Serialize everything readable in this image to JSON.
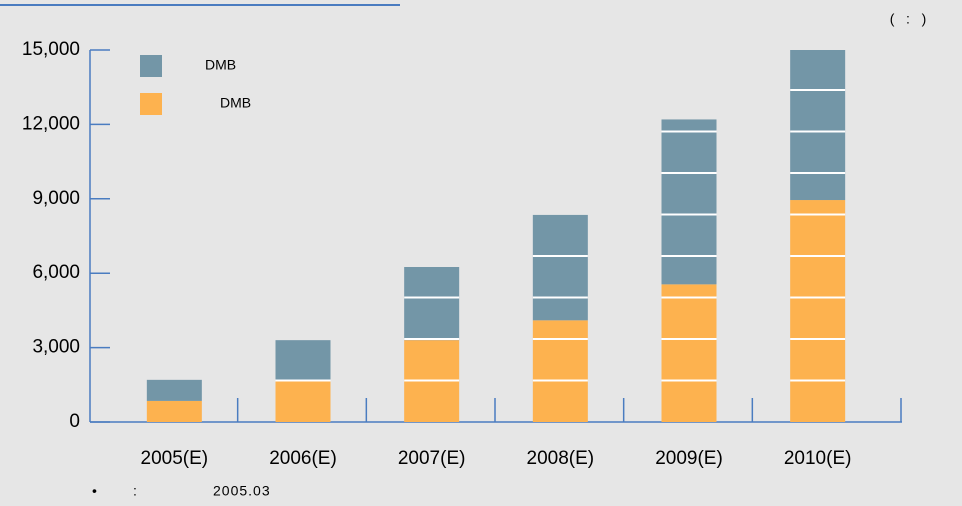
{
  "chart_data": {
    "type": "stacked_bar",
    "unit_label": "(   :   )",
    "note_bullet": "•",
    "note_label": ":",
    "note_text": "2005.03",
    "categories": [
      "2005(E)",
      "2006(E)",
      "2007(E)",
      "2008(E)",
      "2009(E)",
      "2010(E)"
    ],
    "series": [
      {
        "name": "DMB",
        "color": "#fdb24f",
        "values": [
          850,
          1700,
          3300,
          4100,
          5550,
          8950
        ]
      },
      {
        "name": "DMB",
        "color": "#7396a7",
        "values": [
          850,
          1600,
          2950,
          4250,
          6650,
          6050
        ]
      }
    ],
    "ylim": [
      0,
      15000
    ],
    "yticks": [
      0,
      {
        "value": 3000,
        "label": "3,000"
      },
      {
        "value": 6000,
        "label": "6,000"
      },
      {
        "value": 9000,
        "label": "9,000"
      },
      {
        "value": 12000,
        "label": "12,000"
      },
      {
        "value": 15000,
        "label": "15,000"
      }
    ]
  }
}
